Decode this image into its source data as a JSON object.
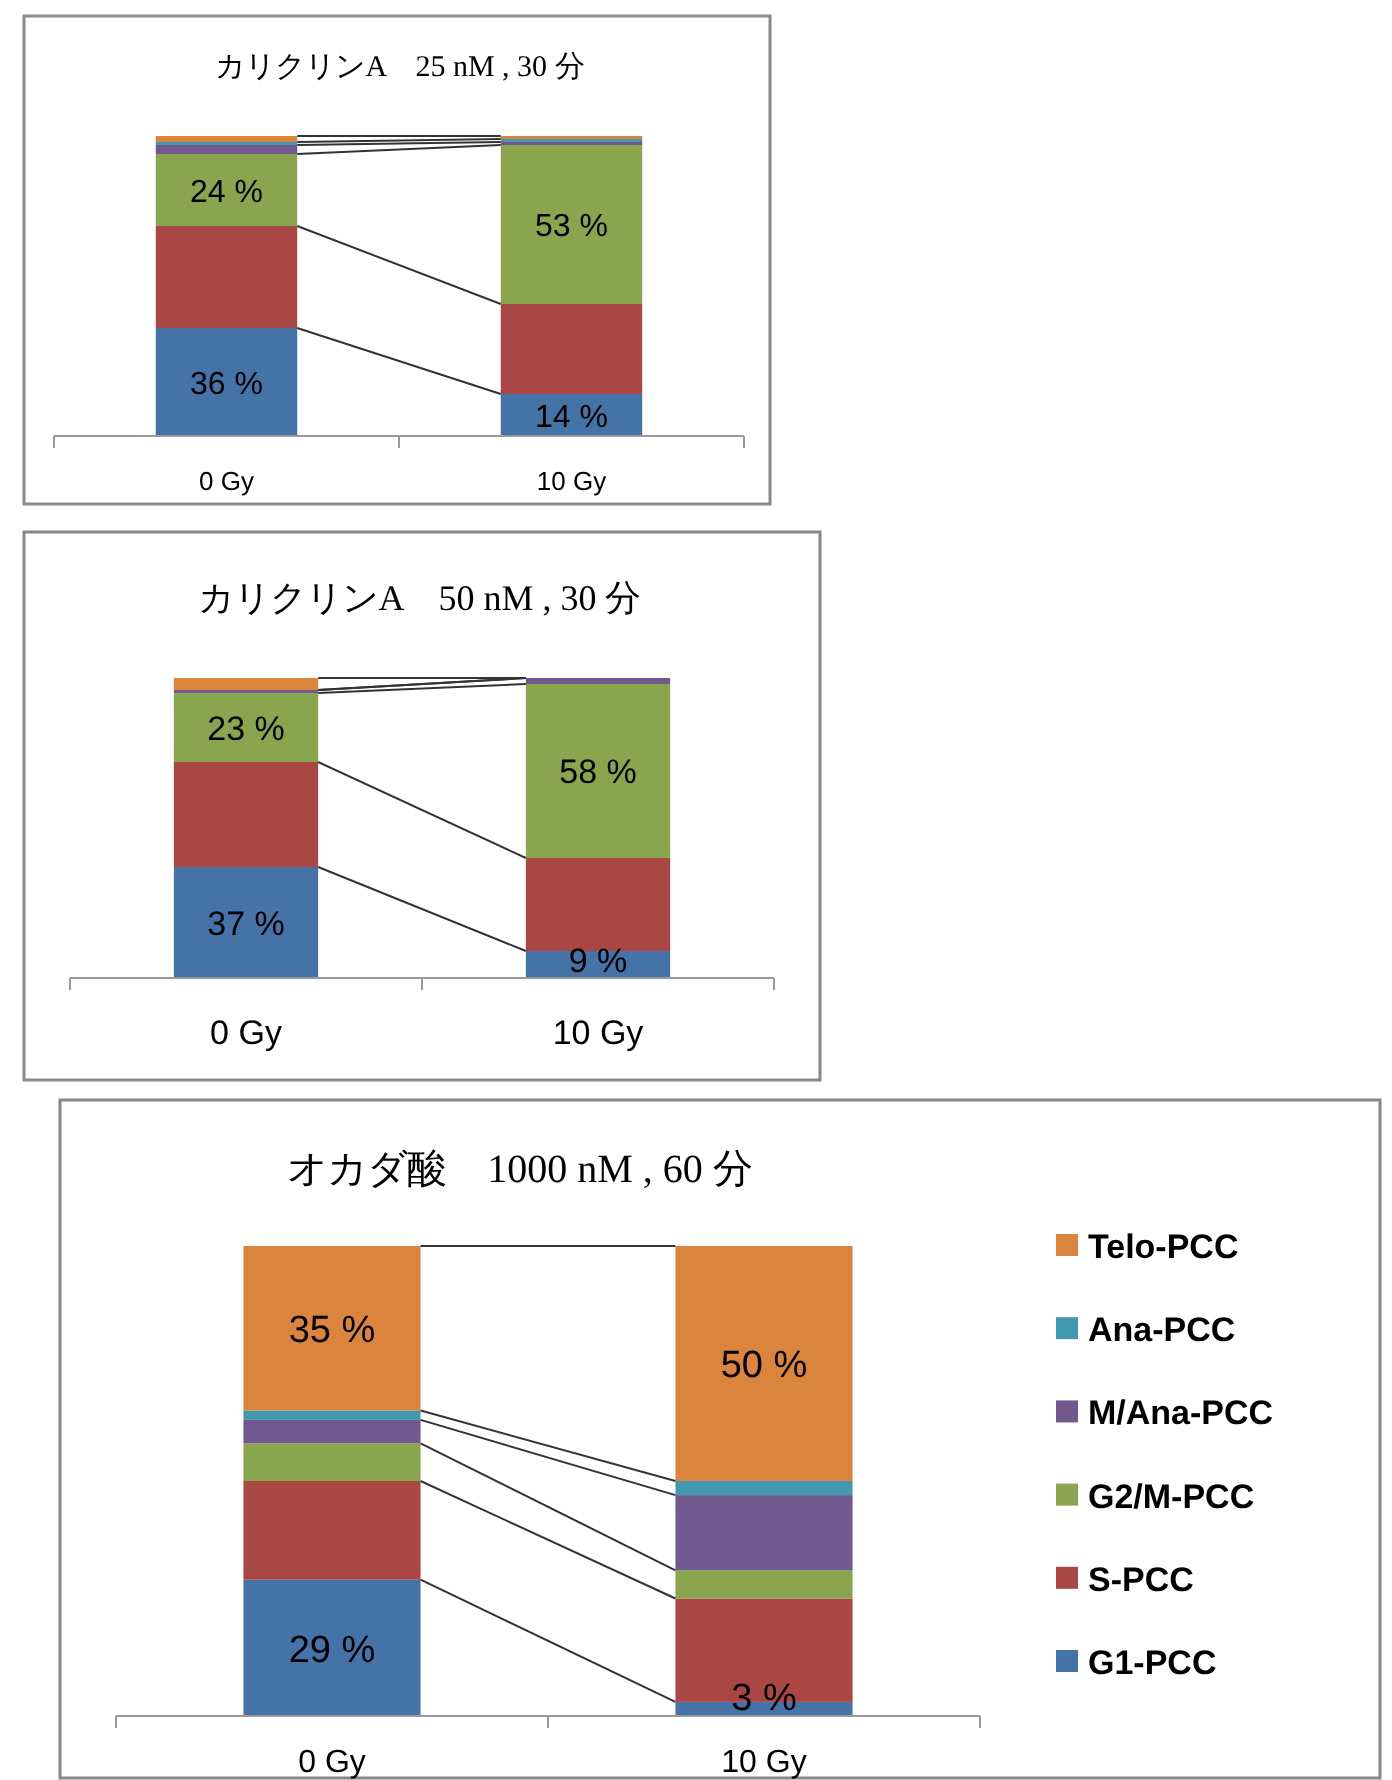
{
  "chart_data": [
    {
      "type": "bar",
      "title": "カリクリンA　25 nM , 30 分",
      "stacked": true,
      "ylim": [
        0,
        100
      ],
      "categories": [
        "0 Gy",
        "10 Gy"
      ],
      "series": [
        {
          "color": "#4572a7",
          "values": [
            36,
            14
          ],
          "value_labels": [
            "36 %",
            "14 %"
          ]
        },
        {
          "color": "#aa4643",
          "values": [
            34,
            30
          ],
          "value_labels": [
            null,
            null
          ]
        },
        {
          "color": "#89a54e",
          "values": [
            24,
            53
          ],
          "value_labels": [
            "24 %",
            "53 %"
          ]
        },
        {
          "color": "#71588f",
          "values": [
            3,
            1
          ],
          "value_labels": [
            null,
            null
          ]
        },
        {
          "color": "#4198af",
          "values": [
            1,
            1
          ],
          "value_labels": [
            null,
            null
          ]
        },
        {
          "color": "#db843d",
          "values": [
            2,
            1
          ],
          "value_labels": [
            null,
            null
          ]
        }
      ]
    },
    {
      "type": "bar",
      "title": "カリクリンA　50 nM , 30 分",
      "stacked": true,
      "ylim": [
        0,
        100
      ],
      "categories": [
        "0 Gy",
        "10 Gy"
      ],
      "series": [
        {
          "color": "#4572a7",
          "values": [
            37,
            9
          ],
          "value_labels": [
            "37 %",
            "9 %"
          ]
        },
        {
          "color": "#aa4643",
          "values": [
            35,
            31
          ],
          "value_labels": [
            null,
            null
          ]
        },
        {
          "color": "#89a54e",
          "values": [
            23,
            58
          ],
          "value_labels": [
            "23 %",
            "58 %"
          ]
        },
        {
          "color": "#71588f",
          "values": [
            1,
            2
          ],
          "value_labels": [
            null,
            null
          ]
        },
        {
          "color": "#4198af",
          "values": [
            0,
            0
          ],
          "value_labels": [
            null,
            null
          ]
        },
        {
          "color": "#db843d",
          "values": [
            4,
            0
          ],
          "value_labels": [
            null,
            null
          ]
        }
      ]
    },
    {
      "type": "bar",
      "title": "オカダ酸　1000 nM , 60 分",
      "stacked": true,
      "ylim": [
        0,
        100
      ],
      "legend": "right",
      "categories": [
        "0 Gy",
        "10 Gy"
      ],
      "series": [
        {
          "name": "G1-PCC",
          "color": "#4572a7",
          "values": [
            29,
            3
          ],
          "value_labels": [
            "29 %",
            "3 %"
          ]
        },
        {
          "name": "S-PCC",
          "color": "#aa4643",
          "values": [
            21,
            22
          ],
          "value_labels": [
            null,
            null
          ]
        },
        {
          "name": "G2/M-PCC",
          "color": "#89a54e",
          "values": [
            8,
            6
          ],
          "value_labels": [
            null,
            null
          ]
        },
        {
          "name": "M/Ana-PCC",
          "color": "#71588f",
          "values": [
            5,
            16
          ],
          "value_labels": [
            null,
            null
          ]
        },
        {
          "name": "Ana-PCC",
          "color": "#4198af",
          "values": [
            2,
            3
          ],
          "value_labels": [
            null,
            null
          ]
        },
        {
          "name": "Telo-PCC",
          "color": "#db843d",
          "values": [
            35,
            50
          ],
          "value_labels": [
            "35 %",
            "50 %"
          ]
        }
      ]
    }
  ]
}
